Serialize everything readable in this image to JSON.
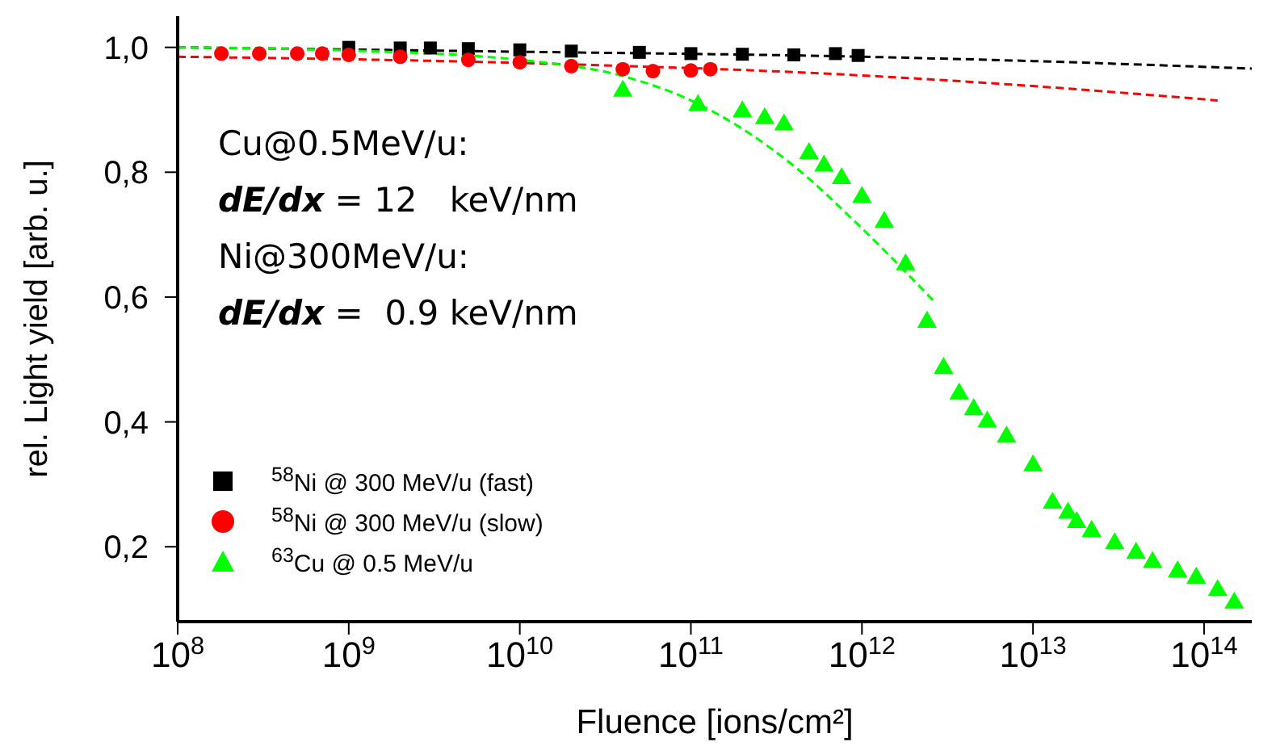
{
  "chart_data": {
    "type": "scatter",
    "xlabel": "Fluence [ions/cm²]",
    "ylabel": "rel. Light yield [arb. u.]",
    "log": "x",
    "xlim": [
      100000000.0,
      190000000000000.0
    ],
    "ylim": [
      0.08,
      1.05
    ],
    "xticks": [
      {
        "value": 100000000.0,
        "label": "10$^{8}$"
      },
      {
        "value": 1000000000.0,
        "label": "10$^{9}$"
      },
      {
        "value": 10000000000.0,
        "label": "10$^{10}$"
      },
      {
        "value": 100000000000.0,
        "label": "10$^{11}$"
      },
      {
        "value": 1000000000000.0,
        "label": "10$^{12}$"
      },
      {
        "value": 10000000000000.0,
        "label": "10$^{13}$"
      },
      {
        "value": 100000000000000.0,
        "label": "10$^{14}$"
      }
    ],
    "yticks": [
      {
        "value": 0.2,
        "label": "0,2"
      },
      {
        "value": 0.4,
        "label": "0,4"
      },
      {
        "value": 0.6,
        "label": "0,6"
      },
      {
        "value": 0.8,
        "label": "0,8"
      },
      {
        "value": 1,
        "label": "1,0"
      }
    ],
    "grid": false,
    "legend": "bottom left",
    "annotations": [
      "Cu@0.5MeV/u:",
      "dE/dx = 12   keV/nm",
      "Ni@300MeV/u:",
      "dE/dx =  0.9 keV/nm"
    ],
    "series": [
      {
        "type": "line",
        "color": "#000000",
        "line_style": "dashed",
        "marker": "none",
        "x": [
          100000000.0,
          10000000000.0,
          1000000000000.0,
          10000000000000.0,
          190000000000000.0
        ],
        "values": [
          1.0,
          0.993,
          0.985,
          0.978,
          0.966
        ]
      },
      {
        "type": "line",
        "color": "#ff0000",
        "line_style": "dashed",
        "marker": "none",
        "x": [
          100000000.0,
          10000000000.0,
          1000000000000.0,
          10000000000000.0,
          120000000000000.0
        ],
        "values": [
          0.985,
          0.975,
          0.955,
          0.938,
          0.915
        ]
      },
      {
        "type": "line",
        "color": "#00ff00",
        "line_style": "dashed",
        "marker": "none",
        "x": [
          100000000.0,
          1000000000.0,
          10000000000.0,
          40000000000.0,
          100000000000.0,
          400000000000.0,
          1000000000000.0,
          2600000000000.0
        ],
        "values": [
          1.0,
          0.995,
          0.98,
          0.954,
          0.915,
          0.81,
          0.71,
          0.595
        ]
      },
      {
        "name": "$^{58}$Ni @ 300 MeV/u (fast)",
        "type": "scatter",
        "marker": "square",
        "color": "#000000",
        "x": [
          1000000000.0,
          2000000000.0,
          3000000000.0,
          5000000000.0,
          10000000000.0,
          20000000000.0,
          50000000000.0,
          100000000000.0,
          200000000000.0,
          400000000000.0,
          700000000000.0,
          950000000000.0
        ],
        "values": [
          1.0,
          0.999,
          0.999,
          0.998,
          0.996,
          0.994,
          0.992,
          0.99,
          0.989,
          0.988,
          0.99,
          0.987
        ]
      },
      {
        "name": "$^{58}$Ni @ 300 MeV/u (slow)",
        "type": "scatter",
        "marker": "circle",
        "color": "#ff0000",
        "x": [
          180000000.0,
          300000000.0,
          500000000.0,
          700000000.0,
          1000000000.0,
          2000000000.0,
          5000000000.0,
          10000000000.0,
          20000000000.0,
          40000000000.0,
          60000000000.0,
          100000000000.0,
          130000000000.0
        ],
        "values": [
          0.99,
          0.99,
          0.99,
          0.99,
          0.988,
          0.985,
          0.98,
          0.976,
          0.97,
          0.965,
          0.962,
          0.963,
          0.965
        ]
      },
      {
        "name": "$^{63}$Cu @ 0.5 MeV/u",
        "type": "scatter",
        "marker": "triangle",
        "color": "#00ff00",
        "x": [
          40000000000.0,
          110000000000.0,
          200000000000.0,
          270000000000.0,
          350000000000.0,
          490000000000.0,
          600000000000.0,
          760000000000.0,
          1000000000000.0,
          1350000000000.0,
          1800000000000.0,
          2400000000000.0,
          3000000000000.0,
          3700000000000.0,
          4500000000000.0,
          5400000000000.0,
          7000000000000.0,
          10000000000000.0,
          13000000000000.0,
          16000000000000.0,
          18000000000000.0,
          22000000000000.0,
          30000000000000.0,
          40000000000000.0,
          50000000000000.0,
          70000000000000.0,
          90000000000000.0,
          120000000000000.0,
          150000000000000.0
        ],
        "values": [
          0.93,
          0.907,
          0.897,
          0.886,
          0.876,
          0.83,
          0.81,
          0.79,
          0.76,
          0.72,
          0.652,
          0.56,
          0.486,
          0.445,
          0.42,
          0.4,
          0.376,
          0.33,
          0.27,
          0.254,
          0.239,
          0.225,
          0.205,
          0.19,
          0.175,
          0.16,
          0.15,
          0.13,
          0.11
        ]
      }
    ]
  }
}
